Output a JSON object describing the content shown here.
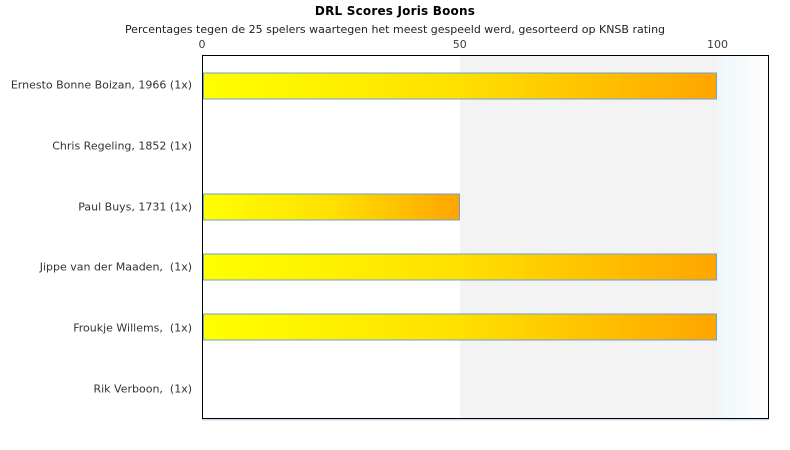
{
  "chart_data": {
    "type": "bar",
    "orientation": "horizontal",
    "title": "DRL Scores Joris Boons",
    "subtitle": "Percentages tegen de 25 spelers waartegen het meest gespeeld werd, gesorteerd op KNSB rating",
    "categories": [
      "Ernesto Bonne Boizan, 1966 (1x)",
      "Chris Regeling, 1852 (1x)",
      "Paul Buys, 1731 (1x)",
      "Jippe van der Maaden,  (1x)",
      "Froukje Willems,  (1x)",
      "Rik Verboon,  (1x)"
    ],
    "values": [
      100,
      0,
      50,
      100,
      100,
      0
    ],
    "x_ticks": [
      0,
      50,
      100
    ],
    "xlim": [
      0,
      110
    ],
    "grid": false,
    "legend": "none",
    "shaded_band": {
      "from": 50,
      "to": 100,
      "color": "#f3f3f3"
    },
    "highlight_band": {
      "from": 100,
      "to": 110,
      "color_left": "#eff6fa",
      "color_right": "#ffffff"
    },
    "bar_style": {
      "gradient_start": "#ffff00",
      "gradient_mid": "#ffe000",
      "gradient_end": "#ffa500",
      "border_color": "#6aa2d2"
    },
    "plot_border_color": "#000000"
  }
}
